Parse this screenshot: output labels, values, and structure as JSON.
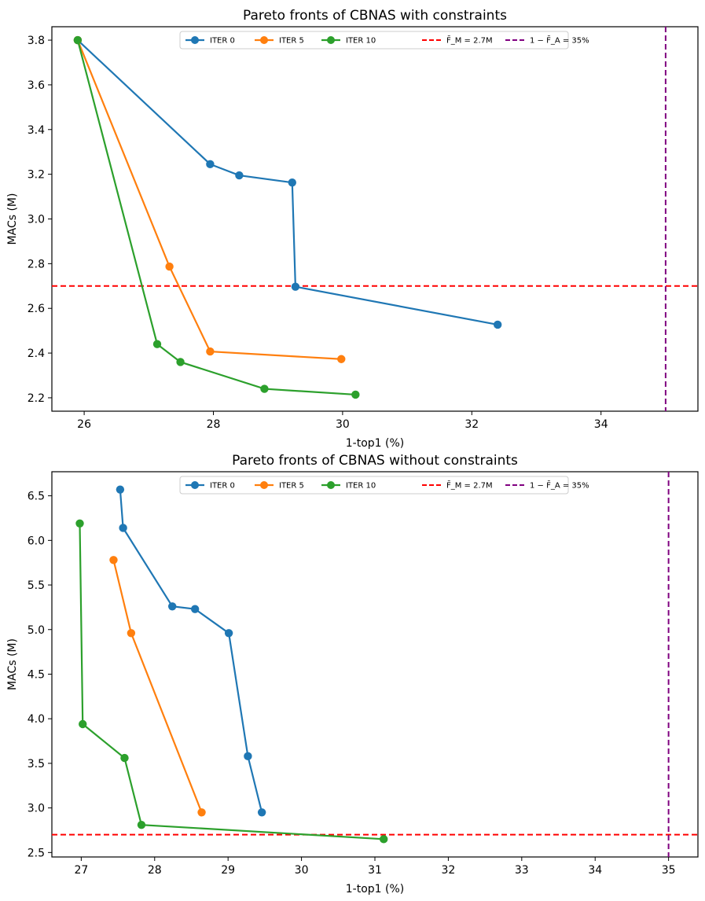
{
  "chart_data": [
    {
      "type": "line",
      "title": "Pareto fronts of CBNAS with constraints",
      "xlabel": "1-top1 (%)",
      "ylabel": "MACs (M)",
      "xlim": [
        25.5,
        35.5
      ],
      "ylim": [
        2.14,
        3.86
      ],
      "xticks": [
        26,
        28,
        30,
        32,
        34
      ],
      "yticks": [
        2.2,
        2.4,
        2.6,
        2.8,
        3.0,
        3.2,
        3.4,
        3.6,
        3.8
      ],
      "xtick_labels": [
        "26",
        "28",
        "30",
        "32",
        "34"
      ],
      "ytick_labels": [
        "2.2",
        "2.4",
        "2.6",
        "2.8",
        "3.0",
        "3.2",
        "3.4",
        "3.6",
        "3.8"
      ],
      "grid": false,
      "legend_position": "top-center",
      "series": [
        {
          "name": "ITER 0",
          "color": "#1f77b4",
          "x": [
            25.9,
            27.95,
            28.4,
            29.22,
            29.27,
            32.4
          ],
          "y": [
            3.8,
            3.245,
            3.195,
            3.163,
            2.697,
            2.527
          ]
        },
        {
          "name": "ITER 5",
          "color": "#ff7f0e",
          "x": [
            25.9,
            27.32,
            27.95,
            29.98
          ],
          "y": [
            3.8,
            2.787,
            2.407,
            2.373
          ]
        },
        {
          "name": "ITER 10",
          "color": "#2ca02c",
          "x": [
            25.9,
            27.13,
            27.49,
            28.79,
            30.2
          ],
          "y": [
            3.8,
            2.44,
            2.36,
            2.24,
            2.214
          ]
        }
      ],
      "reference_lines": [
        {
          "name": "F̄_M = 2.7M",
          "legend_label": "F̄_M = 2.7M",
          "orientation": "horizontal",
          "value": 2.7,
          "color": "#ff0000"
        },
        {
          "name": "1 − F̄_A = 35%",
          "legend_label": "1 − F̄_A = 35%",
          "orientation": "vertical",
          "value": 35,
          "color": "#800080"
        }
      ]
    },
    {
      "type": "line",
      "title": "Pareto fronts of CBNAS without constraints",
      "xlabel": "1-top1 (%)",
      "ylabel": "MACs (M)",
      "xlim": [
        26.6,
        35.4
      ],
      "ylim": [
        2.45,
        6.77
      ],
      "xticks": [
        27,
        28,
        29,
        30,
        31,
        32,
        33,
        34,
        35
      ],
      "yticks": [
        2.5,
        3.0,
        3.5,
        4.0,
        4.5,
        5.0,
        5.5,
        6.0,
        6.5
      ],
      "xtick_labels": [
        "27",
        "28",
        "29",
        "30",
        "31",
        "32",
        "33",
        "34",
        "35"
      ],
      "ytick_labels": [
        "2.5",
        "3.0",
        "3.5",
        "4.0",
        "4.5",
        "5.0",
        "5.5",
        "6.0",
        "6.5"
      ],
      "grid": false,
      "legend_position": "top-center",
      "series": [
        {
          "name": "ITER 0",
          "color": "#1f77b4",
          "x": [
            27.53,
            27.57,
            28.24,
            28.55,
            29.01,
            29.27,
            29.46
          ],
          "y": [
            6.57,
            6.14,
            5.26,
            5.23,
            4.96,
            3.58,
            2.95
          ]
        },
        {
          "name": "ITER 5",
          "color": "#ff7f0e",
          "x": [
            27.44,
            27.68,
            28.64
          ],
          "y": [
            5.78,
            4.96,
            2.95
          ]
        },
        {
          "name": "ITER 10",
          "color": "#2ca02c",
          "x": [
            26.98,
            27.02,
            27.59,
            27.82,
            31.12
          ],
          "y": [
            6.19,
            3.94,
            3.56,
            2.81,
            2.65
          ]
        }
      ],
      "reference_lines": [
        {
          "name": "F̄_M = 2.7M",
          "legend_label": "F̄_M = 2.7M",
          "orientation": "horizontal",
          "value": 2.7,
          "color": "#ff0000"
        },
        {
          "name": "1 − F̄_A = 35%",
          "legend_label": "1 − F̄_A = 35%",
          "orientation": "vertical",
          "value": 35,
          "color": "#800080"
        }
      ]
    }
  ]
}
